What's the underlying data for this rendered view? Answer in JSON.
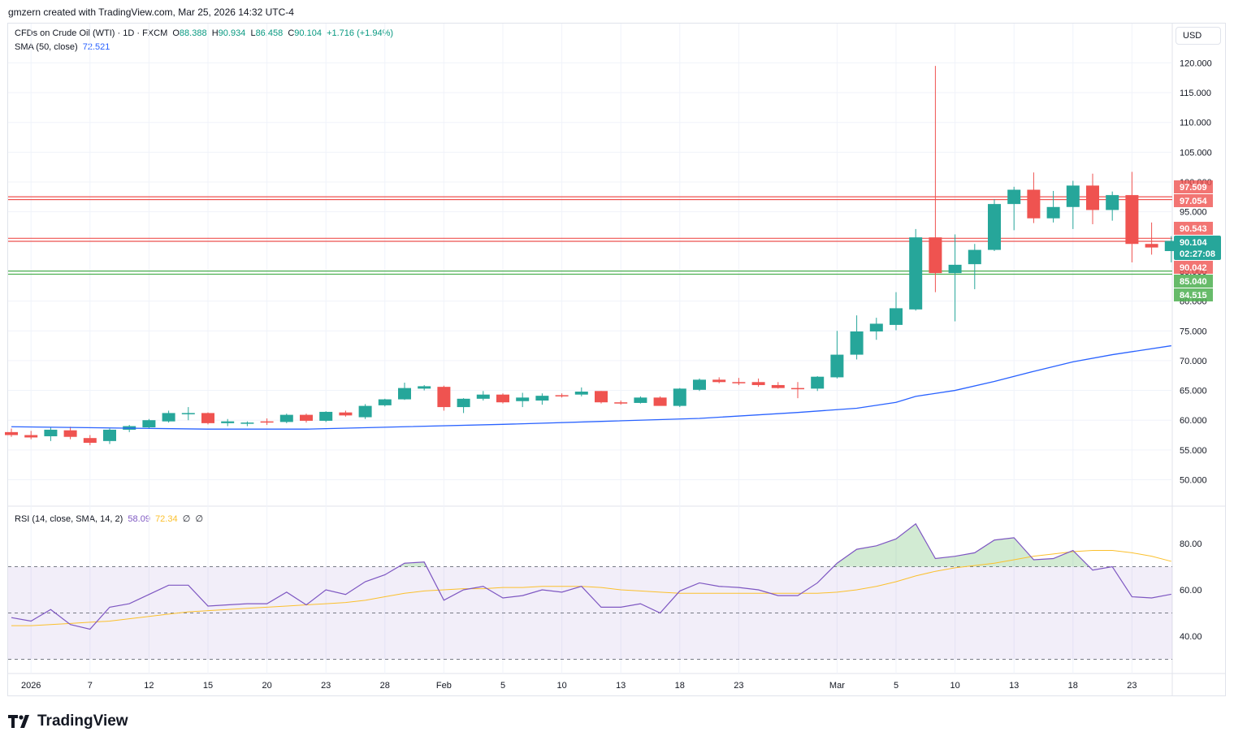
{
  "attribution": "gmzern created with TradingView.com, Mar 25, 2026 14:32 UTC-4",
  "legend": {
    "symbol": "CFDs on Crude Oil (WTI) · 1D · FXCM",
    "o_label": "O",
    "o": "88.388",
    "h_label": "H",
    "h": "90.934",
    "l_label": "L",
    "l": "86.458",
    "c_label": "C",
    "c": "90.104",
    "change": "+1.716 (+1.94%)",
    "sma_label": "SMA (50, close)",
    "sma_value": "72.521",
    "rsi_label": "RSI (14, close, SMA, 14, 2)",
    "rsi_value": "58.09",
    "rsi_sma_value": "72.34",
    "rsi_extra1": "∅",
    "rsi_extra2": "∅"
  },
  "currency": "USD",
  "brand": "TradingView",
  "colors": {
    "up": "#26a69a",
    "down": "#ef5350",
    "sma": "#2962ff",
    "rsi": "#7e57c2",
    "rsi_sma": "#fbc02d",
    "resistance": "#ef5350",
    "support": "#4caf50"
  },
  "chart_data": [
    {
      "type": "candlestick",
      "title": "CFDs on Crude Oil (WTI) · 1D · FXCM",
      "ylim": [
        45,
        125
      ],
      "price_ticks": [
        "50.000",
        "55.000",
        "60.000",
        "65.000",
        "70.000",
        "75.000",
        "80.000",
        "85.000",
        "90.000",
        "95.000",
        "100.000",
        "105.000",
        "110.000",
        "115.000",
        "120.000"
      ],
      "x_tick_labels": [
        {
          "label": "2026",
          "i": 1
        },
        {
          "label": "7",
          "i": 4
        },
        {
          "label": "12",
          "i": 7
        },
        {
          "label": "15",
          "i": 10
        },
        {
          "label": "20",
          "i": 13
        },
        {
          "label": "23",
          "i": 16
        },
        {
          "label": "28",
          "i": 19
        },
        {
          "label": "Feb",
          "i": 22
        },
        {
          "label": "5",
          "i": 25
        },
        {
          "label": "10",
          "i": 28
        },
        {
          "label": "13",
          "i": 31
        },
        {
          "label": "18",
          "i": 34
        },
        {
          "label": "23",
          "i": 37
        },
        {
          "label": "Mar",
          "i": 42
        },
        {
          "label": "5",
          "i": 45
        },
        {
          "label": "10",
          "i": 48
        },
        {
          "label": "13",
          "i": 51
        },
        {
          "label": "18",
          "i": 54
        },
        {
          "label": "23",
          "i": 57
        }
      ],
      "candles": [
        {
          "o": 58.0,
          "h": 58.6,
          "l": 57.2,
          "c": 57.5
        },
        {
          "o": 57.5,
          "h": 58.2,
          "l": 56.8,
          "c": 57.1
        },
        {
          "o": 57.3,
          "h": 58.8,
          "l": 56.5,
          "c": 58.4
        },
        {
          "o": 58.3,
          "h": 58.9,
          "l": 56.8,
          "c": 57.2
        },
        {
          "o": 57.0,
          "h": 57.5,
          "l": 55.8,
          "c": 56.2
        },
        {
          "o": 56.5,
          "h": 58.6,
          "l": 56.0,
          "c": 58.4
        },
        {
          "o": 58.4,
          "h": 59.2,
          "l": 58.0,
          "c": 59.0
        },
        {
          "o": 58.8,
          "h": 60.2,
          "l": 58.6,
          "c": 60.0
        },
        {
          "o": 59.8,
          "h": 61.6,
          "l": 59.6,
          "c": 61.2
        },
        {
          "o": 61.0,
          "h": 62.2,
          "l": 60.0,
          "c": 61.2
        },
        {
          "o": 61.2,
          "h": 61.3,
          "l": 59.3,
          "c": 59.5
        },
        {
          "o": 59.5,
          "h": 60.2,
          "l": 59.0,
          "c": 59.8
        },
        {
          "o": 59.4,
          "h": 59.8,
          "l": 59.0,
          "c": 59.6
        },
        {
          "o": 59.8,
          "h": 60.3,
          "l": 59.2,
          "c": 59.6
        },
        {
          "o": 59.7,
          "h": 61.1,
          "l": 59.5,
          "c": 60.9
        },
        {
          "o": 60.9,
          "h": 61.1,
          "l": 59.6,
          "c": 59.9
        },
        {
          "o": 59.9,
          "h": 61.5,
          "l": 59.7,
          "c": 61.4
        },
        {
          "o": 61.3,
          "h": 61.6,
          "l": 60.6,
          "c": 60.8
        },
        {
          "o": 60.5,
          "h": 62.7,
          "l": 60.2,
          "c": 62.4
        },
        {
          "o": 62.5,
          "h": 63.6,
          "l": 62.3,
          "c": 63.5
        },
        {
          "o": 63.5,
          "h": 66.3,
          "l": 63.4,
          "c": 65.4
        },
        {
          "o": 65.3,
          "h": 65.9,
          "l": 65.0,
          "c": 65.7
        },
        {
          "o": 65.6,
          "h": 65.8,
          "l": 61.6,
          "c": 62.2
        },
        {
          "o": 62.2,
          "h": 63.7,
          "l": 61.2,
          "c": 63.6
        },
        {
          "o": 63.6,
          "h": 64.9,
          "l": 63.3,
          "c": 64.3
        },
        {
          "o": 64.3,
          "h": 64.5,
          "l": 62.8,
          "c": 63.0
        },
        {
          "o": 63.2,
          "h": 64.6,
          "l": 62.2,
          "c": 63.8
        },
        {
          "o": 63.3,
          "h": 64.5,
          "l": 62.6,
          "c": 64.1
        },
        {
          "o": 64.2,
          "h": 64.5,
          "l": 63.8,
          "c": 64.1
        },
        {
          "o": 64.3,
          "h": 65.5,
          "l": 64.0,
          "c": 64.8
        },
        {
          "o": 64.9,
          "h": 64.9,
          "l": 62.8,
          "c": 63.0
        },
        {
          "o": 63.0,
          "h": 63.3,
          "l": 62.6,
          "c": 62.9
        },
        {
          "o": 62.9,
          "h": 64.0,
          "l": 62.8,
          "c": 63.8
        },
        {
          "o": 63.8,
          "h": 64.0,
          "l": 62.6,
          "c": 62.4
        },
        {
          "o": 62.4,
          "h": 65.4,
          "l": 62.2,
          "c": 65.3
        },
        {
          "o": 65.1,
          "h": 67.0,
          "l": 64.9,
          "c": 66.8
        },
        {
          "o": 66.8,
          "h": 67.2,
          "l": 66.2,
          "c": 66.4
        },
        {
          "o": 66.4,
          "h": 67.1,
          "l": 65.9,
          "c": 66.3
        },
        {
          "o": 66.4,
          "h": 67.0,
          "l": 65.6,
          "c": 65.9
        },
        {
          "o": 65.9,
          "h": 66.4,
          "l": 65.3,
          "c": 65.4
        },
        {
          "o": 65.4,
          "h": 66.4,
          "l": 63.7,
          "c": 65.3
        },
        {
          "o": 65.3,
          "h": 67.4,
          "l": 64.9,
          "c": 67.3
        },
        {
          "o": 67.2,
          "h": 75.0,
          "l": 67.0,
          "c": 71.0
        },
        {
          "o": 71.0,
          "h": 77.6,
          "l": 70.2,
          "c": 74.9
        },
        {
          "o": 74.9,
          "h": 77.2,
          "l": 73.5,
          "c": 76.2
        },
        {
          "o": 76.0,
          "h": 81.5,
          "l": 75.1,
          "c": 78.8
        },
        {
          "o": 78.6,
          "h": 92.1,
          "l": 78.4,
          "c": 90.7
        },
        {
          "o": 90.7,
          "h": 119.5,
          "l": 81.5,
          "c": 84.7
        },
        {
          "o": 84.7,
          "h": 91.2,
          "l": 76.6,
          "c": 86.1
        },
        {
          "o": 86.2,
          "h": 89.6,
          "l": 82.0,
          "c": 88.6
        },
        {
          "o": 88.6,
          "h": 97.1,
          "l": 88.4,
          "c": 96.3
        },
        {
          "o": 96.3,
          "h": 99.2,
          "l": 91.9,
          "c": 98.7
        },
        {
          "o": 98.7,
          "h": 101.6,
          "l": 93.1,
          "c": 93.9
        },
        {
          "o": 93.9,
          "h": 98.5,
          "l": 93.2,
          "c": 95.8
        },
        {
          "o": 95.8,
          "h": 100.2,
          "l": 92.1,
          "c": 99.4
        },
        {
          "o": 99.4,
          "h": 101.4,
          "l": 92.9,
          "c": 95.3
        },
        {
          "o": 95.3,
          "h": 98.4,
          "l": 93.5,
          "c": 97.8
        },
        {
          "o": 97.8,
          "h": 101.7,
          "l": 86.5,
          "c": 89.6
        },
        {
          "o": 89.6,
          "h": 93.2,
          "l": 87.8,
          "c": 89.0
        },
        {
          "o": 88.4,
          "h": 90.9,
          "l": 86.5,
          "c": 90.1
        }
      ],
      "sma_50": [
        {
          "i": 0,
          "v": 58.9
        },
        {
          "i": 5,
          "v": 58.7
        },
        {
          "i": 10,
          "v": 58.5
        },
        {
          "i": 15,
          "v": 58.5
        },
        {
          "i": 20,
          "v": 58.9
        },
        {
          "i": 25,
          "v": 59.3
        },
        {
          "i": 30,
          "v": 59.8
        },
        {
          "i": 35,
          "v": 60.3
        },
        {
          "i": 40,
          "v": 61.3
        },
        {
          "i": 43,
          "v": 62.0
        },
        {
          "i": 45,
          "v": 63.0
        },
        {
          "i": 46,
          "v": 64.0
        },
        {
          "i": 48,
          "v": 65.0
        },
        {
          "i": 50,
          "v": 66.5
        },
        {
          "i": 52,
          "v": 68.2
        },
        {
          "i": 54,
          "v": 69.8
        },
        {
          "i": 56,
          "v": 71.0
        },
        {
          "i": 59,
          "v": 72.5
        }
      ],
      "horizontal_levels": [
        {
          "value": 97.509,
          "label": "97.509",
          "kind": "resistance"
        },
        {
          "value": 97.054,
          "label": "97.054",
          "kind": "resistance"
        },
        {
          "value": 90.543,
          "label": "90.543",
          "kind": "resistance"
        },
        {
          "value": 90.042,
          "label": "90.042",
          "kind": "resistance"
        },
        {
          "value": 85.04,
          "label": "85.040",
          "kind": "support"
        },
        {
          "value": 84.515,
          "label": "84.515",
          "kind": "support"
        }
      ],
      "last_price": {
        "value": 90.104,
        "label": "90.104",
        "countdown": "02:27:08"
      }
    },
    {
      "type": "line",
      "title": "RSI (14, close, SMA, 14, 2)",
      "ylim": [
        25,
        95
      ],
      "y_ticks": [
        "40.00",
        "60.00",
        "80.00"
      ],
      "bands": {
        "upper": 70,
        "middle": 50,
        "lower": 30
      },
      "series": [
        {
          "name": "RSI",
          "values": [
            48,
            46.5,
            51.5,
            45,
            43,
            52.5,
            54,
            58,
            62,
            62,
            53,
            53.5,
            54,
            54,
            59,
            53.5,
            60,
            58,
            63.5,
            66.5,
            71.5,
            72,
            55.5,
            60,
            61.5,
            56.5,
            57.5,
            60,
            59,
            61.5,
            52.5,
            52.5,
            54,
            50,
            59.5,
            63,
            61.5,
            61,
            60,
            57.5,
            57.5,
            63,
            71.5,
            77.5,
            79,
            82,
            88.5,
            73.5,
            74.5,
            76,
            81.5,
            82.5,
            73,
            73.5,
            77,
            68.5,
            70,
            57,
            56.5,
            58.1
          ]
        },
        {
          "name": "RSI SMA",
          "values": [
            44.5,
            44.5,
            45,
            45.5,
            46,
            46.5,
            47.5,
            48.5,
            49.5,
            50.5,
            51,
            51.5,
            52,
            52.5,
            53,
            53.5,
            54,
            54.5,
            55.5,
            57,
            58.5,
            59.5,
            60,
            60.5,
            60.5,
            61,
            61,
            61.5,
            61.5,
            61.5,
            61,
            60,
            59.5,
            59,
            58.5,
            58.5,
            58.5,
            58.5,
            58.5,
            58.5,
            58.5,
            58.5,
            59,
            60,
            61.5,
            63.5,
            66,
            68,
            69.5,
            70.5,
            71.5,
            73,
            74.5,
            75.5,
            76.5,
            77,
            77,
            76,
            74.5,
            72.3
          ]
        }
      ]
    }
  ]
}
